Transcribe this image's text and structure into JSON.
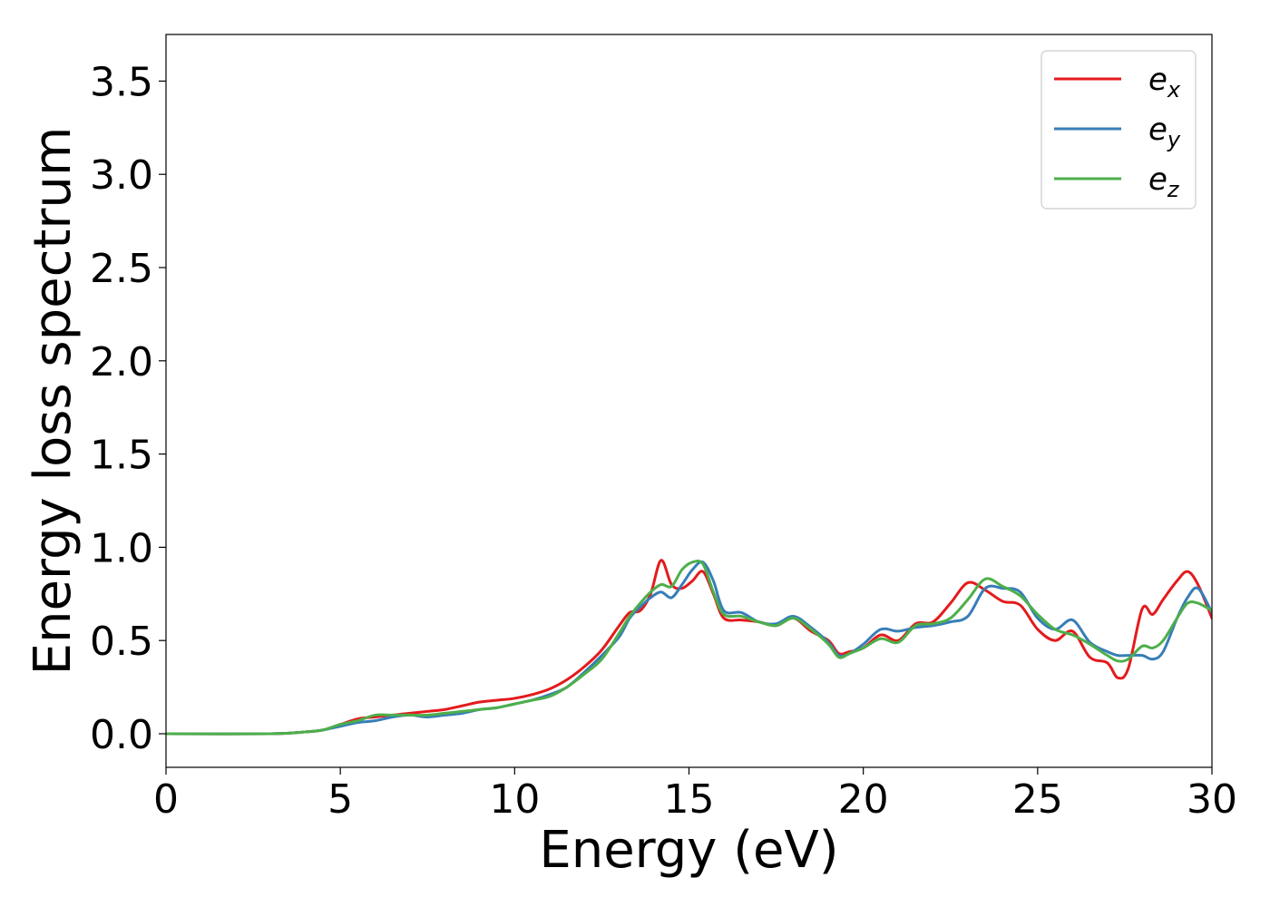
{
  "chart_data": {
    "type": "line",
    "title": "",
    "xlabel": "Energy (eV)",
    "ylabel": "Energy loss spectrum",
    "xlim": [
      0,
      30
    ],
    "ylim": [
      -0.18,
      3.75
    ],
    "x_ticks": [
      "0",
      "5",
      "10",
      "15",
      "20",
      "25",
      "30"
    ],
    "y_ticks": [
      "0.0",
      "0.5",
      "1.0",
      "1.5",
      "2.0",
      "2.5",
      "3.0",
      "3.5"
    ],
    "grid": false,
    "legend_position": "top-right",
    "series": [
      {
        "name": "e_x",
        "legend_base": "e",
        "legend_sub": "x",
        "color": "#e41a1c",
        "x": [
          0,
          3,
          4,
          4.5,
          5,
          5.5,
          6,
          6.5,
          7,
          7.5,
          8,
          8.5,
          9,
          9.5,
          10,
          10.5,
          11,
          11.5,
          12,
          12.5,
          13,
          13.3,
          13.6,
          13.9,
          14.2,
          14.5,
          14.8,
          15.1,
          15.4,
          15.7,
          16,
          16.5,
          17,
          17.5,
          18,
          18.5,
          19,
          19.3,
          19.6,
          20,
          20.5,
          21,
          21.5,
          22,
          22.5,
          23,
          23.5,
          24,
          24.5,
          25,
          25.5,
          26,
          26.5,
          27,
          27.3,
          27.6,
          28,
          28.3,
          28.6,
          29,
          29.3,
          29.6,
          30
        ],
        "y": [
          0,
          0,
          0.01,
          0.02,
          0.05,
          0.08,
          0.09,
          0.1,
          0.11,
          0.12,
          0.13,
          0.15,
          0.17,
          0.18,
          0.19,
          0.21,
          0.24,
          0.29,
          0.36,
          0.45,
          0.58,
          0.65,
          0.66,
          0.75,
          0.93,
          0.8,
          0.78,
          0.82,
          0.87,
          0.75,
          0.62,
          0.61,
          0.6,
          0.58,
          0.62,
          0.55,
          0.5,
          0.43,
          0.44,
          0.46,
          0.53,
          0.5,
          0.59,
          0.6,
          0.7,
          0.81,
          0.77,
          0.71,
          0.69,
          0.56,
          0.5,
          0.55,
          0.41,
          0.38,
          0.3,
          0.35,
          0.67,
          0.64,
          0.72,
          0.82,
          0.87,
          0.8,
          0.62
        ]
      },
      {
        "name": "e_y",
        "legend_base": "e",
        "legend_sub": "y",
        "color": "#377eb8",
        "x": [
          0,
          3,
          4,
          4.5,
          5,
          5.5,
          6,
          6.5,
          7,
          7.5,
          8,
          8.5,
          9,
          9.5,
          10,
          10.5,
          11,
          11.5,
          12,
          12.5,
          13,
          13.3,
          13.6,
          13.9,
          14.2,
          14.5,
          14.8,
          15.1,
          15.4,
          15.7,
          16,
          16.5,
          17,
          17.5,
          18,
          18.5,
          19,
          19.3,
          19.6,
          20,
          20.5,
          21,
          21.5,
          22,
          22.5,
          23,
          23.5,
          24,
          24.5,
          25,
          25.5,
          26,
          26.5,
          27,
          27.3,
          27.6,
          28,
          28.3,
          28.6,
          29,
          29.3,
          29.6,
          30
        ],
        "y": [
          0,
          0,
          0.01,
          0.02,
          0.04,
          0.06,
          0.07,
          0.09,
          0.1,
          0.09,
          0.1,
          0.11,
          0.13,
          0.14,
          0.16,
          0.18,
          0.21,
          0.25,
          0.33,
          0.42,
          0.52,
          0.62,
          0.68,
          0.73,
          0.76,
          0.73,
          0.8,
          0.88,
          0.92,
          0.82,
          0.66,
          0.65,
          0.6,
          0.59,
          0.63,
          0.57,
          0.49,
          0.42,
          0.43,
          0.48,
          0.56,
          0.55,
          0.57,
          0.58,
          0.6,
          0.63,
          0.78,
          0.78,
          0.76,
          0.62,
          0.56,
          0.61,
          0.49,
          0.44,
          0.42,
          0.42,
          0.42,
          0.4,
          0.44,
          0.62,
          0.73,
          0.78,
          0.65
        ]
      },
      {
        "name": "e_z",
        "legend_base": "e",
        "legend_sub": "z",
        "color": "#4daf4a",
        "x": [
          0,
          3,
          4,
          4.5,
          5,
          5.5,
          6,
          6.5,
          7,
          7.5,
          8,
          8.5,
          9,
          9.5,
          10,
          10.5,
          11,
          11.5,
          12,
          12.5,
          13,
          13.3,
          13.6,
          13.9,
          14.2,
          14.5,
          14.8,
          15.1,
          15.4,
          15.7,
          16,
          16.5,
          17,
          17.5,
          18,
          18.5,
          19,
          19.3,
          19.6,
          20,
          20.5,
          21,
          21.5,
          22,
          22.5,
          23,
          23.5,
          24,
          24.5,
          25,
          25.5,
          26,
          26.5,
          27,
          27.3,
          27.6,
          28,
          28.3,
          28.6,
          29,
          29.3,
          29.6,
          30
        ],
        "y": [
          0,
          0,
          0.01,
          0.02,
          0.05,
          0.07,
          0.1,
          0.1,
          0.1,
          0.1,
          0.11,
          0.12,
          0.13,
          0.14,
          0.16,
          0.18,
          0.2,
          0.25,
          0.32,
          0.4,
          0.54,
          0.63,
          0.7,
          0.76,
          0.8,
          0.79,
          0.88,
          0.92,
          0.91,
          0.76,
          0.64,
          0.63,
          0.6,
          0.58,
          0.62,
          0.56,
          0.48,
          0.41,
          0.43,
          0.46,
          0.51,
          0.49,
          0.58,
          0.59,
          0.62,
          0.72,
          0.83,
          0.79,
          0.74,
          0.64,
          0.56,
          0.53,
          0.48,
          0.42,
          0.39,
          0.4,
          0.47,
          0.46,
          0.5,
          0.62,
          0.7,
          0.7,
          0.66
        ]
      }
    ]
  }
}
